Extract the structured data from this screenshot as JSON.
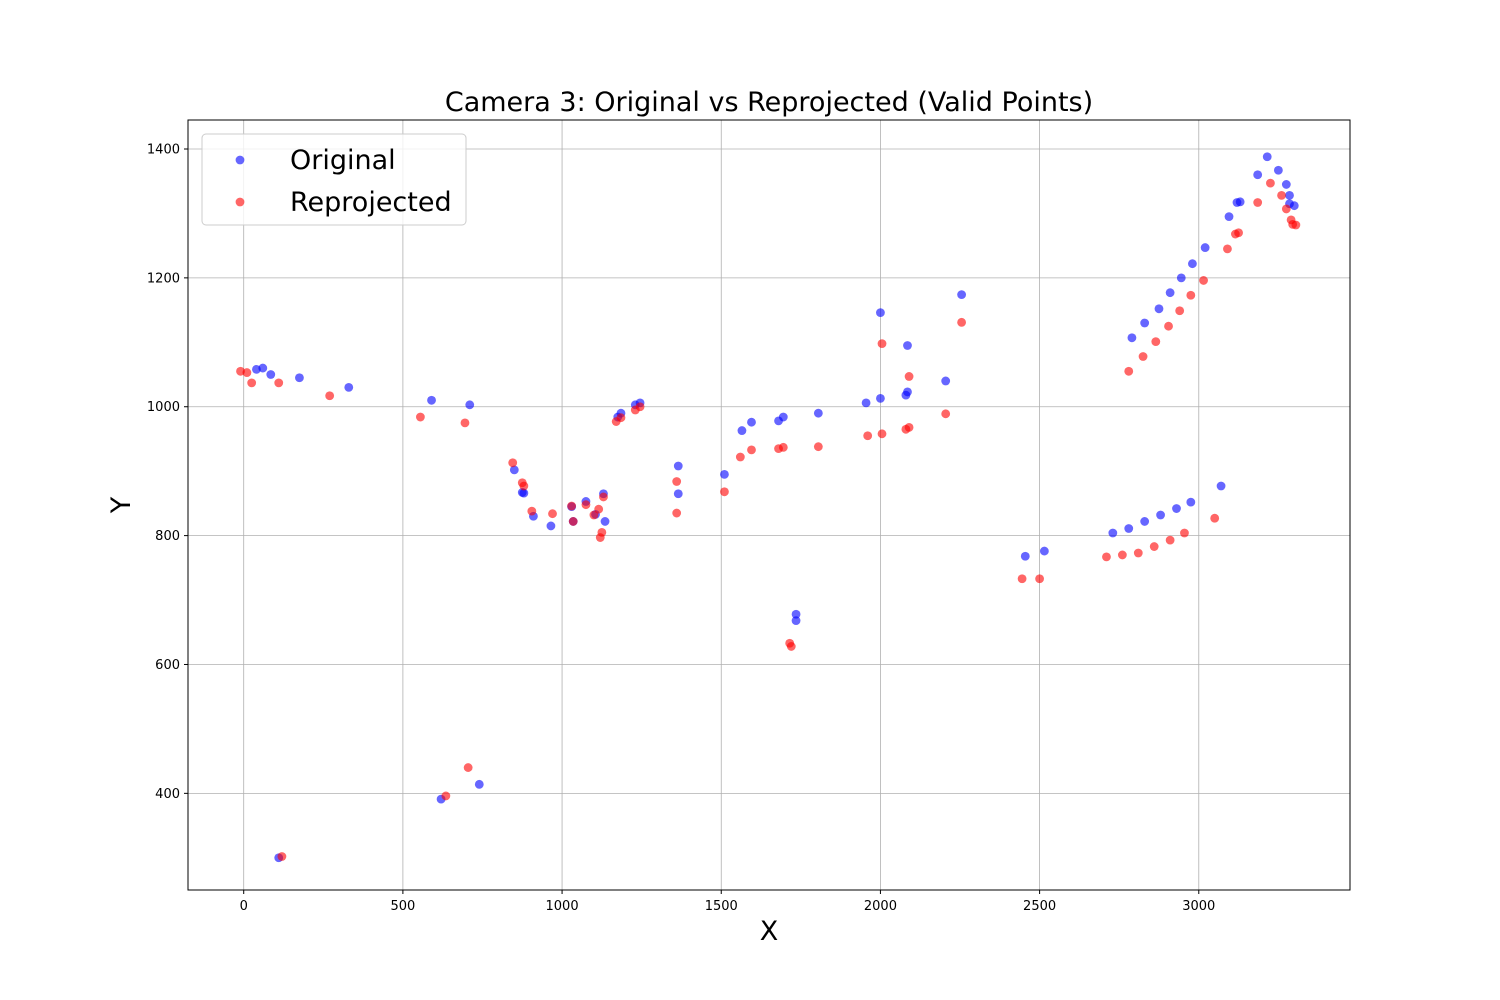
{
  "chart_data": {
    "type": "scatter",
    "title": "Camera 3: Original vs Reprojected (Valid Points)",
    "xlabel": "X",
    "ylabel": "Y",
    "xlim": [
      -175,
      3475
    ],
    "ylim": [
      250,
      1445
    ],
    "xticks": [
      0,
      500,
      1000,
      1500,
      2000,
      2500,
      3000
    ],
    "yticks": [
      400,
      600,
      800,
      1000,
      1200,
      1400
    ],
    "grid": true,
    "legend_position": "upper-left",
    "series": [
      {
        "name": "Original",
        "color": "#0000ff",
        "alpha": 0.6,
        "points": [
          [
            40,
            1058
          ],
          [
            60,
            1060
          ],
          [
            85,
            1050
          ],
          [
            175,
            1045
          ],
          [
            330,
            1030
          ],
          [
            590,
            1010
          ],
          [
            710,
            1003
          ],
          [
            850,
            902
          ],
          [
            875,
            867
          ],
          [
            880,
            866
          ],
          [
            910,
            830
          ],
          [
            965,
            815
          ],
          [
            1030,
            845
          ],
          [
            1035,
            822
          ],
          [
            1075,
            853
          ],
          [
            1105,
            833
          ],
          [
            1130,
            865
          ],
          [
            1135,
            822
          ],
          [
            1175,
            984
          ],
          [
            1185,
            990
          ],
          [
            1230,
            1003
          ],
          [
            1245,
            1006
          ],
          [
            1365,
            908
          ],
          [
            1365,
            865
          ],
          [
            1510,
            895
          ],
          [
            1565,
            963
          ],
          [
            1595,
            976
          ],
          [
            1680,
            978
          ],
          [
            1695,
            984
          ],
          [
            1805,
            990
          ],
          [
            1735,
            678
          ],
          [
            1735,
            668
          ],
          [
            1955,
            1006
          ],
          [
            2000,
            1013
          ],
          [
            2000,
            1146
          ],
          [
            2080,
            1018
          ],
          [
            2085,
            1023
          ],
          [
            2085,
            1095
          ],
          [
            2205,
            1040
          ],
          [
            2255,
            1174
          ],
          [
            2455,
            768
          ],
          [
            2515,
            776
          ],
          [
            2730,
            804
          ],
          [
            2780,
            811
          ],
          [
            2830,
            822
          ],
          [
            2880,
            832
          ],
          [
            2930,
            842
          ],
          [
            2975,
            852
          ],
          [
            3070,
            877
          ],
          [
            2790,
            1107
          ],
          [
            2830,
            1130
          ],
          [
            2875,
            1152
          ],
          [
            2910,
            1177
          ],
          [
            2945,
            1200
          ],
          [
            2980,
            1222
          ],
          [
            3020,
            1247
          ],
          [
            3095,
            1295
          ],
          [
            3120,
            1317
          ],
          [
            3130,
            1318
          ],
          [
            3185,
            1360
          ],
          [
            3215,
            1388
          ],
          [
            3250,
            1367
          ],
          [
            3275,
            1345
          ],
          [
            3285,
            1328
          ],
          [
            3285,
            1315
          ],
          [
            3300,
            1312
          ],
          [
            110,
            300
          ],
          [
            620,
            391
          ],
          [
            740,
            414
          ]
        ]
      },
      {
        "name": "Reprojected",
        "color": "#ff0000",
        "alpha": 0.6,
        "points": [
          [
            -10,
            1055
          ],
          [
            10,
            1053
          ],
          [
            25,
            1037
          ],
          [
            110,
            1037
          ],
          [
            270,
            1017
          ],
          [
            555,
            984
          ],
          [
            695,
            975
          ],
          [
            845,
            913
          ],
          [
            875,
            882
          ],
          [
            880,
            877
          ],
          [
            905,
            838
          ],
          [
            970,
            834
          ],
          [
            1030,
            846
          ],
          [
            1035,
            822
          ],
          [
            1075,
            848
          ],
          [
            1100,
            832
          ],
          [
            1115,
            841
          ],
          [
            1120,
            797
          ],
          [
            1125,
            805
          ],
          [
            1130,
            860
          ],
          [
            1170,
            977
          ],
          [
            1185,
            983
          ],
          [
            1230,
            995
          ],
          [
            1245,
            1000
          ],
          [
            1360,
            884
          ],
          [
            1360,
            835
          ],
          [
            1510,
            868
          ],
          [
            1560,
            922
          ],
          [
            1595,
            933
          ],
          [
            1680,
            935
          ],
          [
            1695,
            937
          ],
          [
            1805,
            938
          ],
          [
            1715,
            633
          ],
          [
            1720,
            628
          ],
          [
            1960,
            955
          ],
          [
            2005,
            958
          ],
          [
            2005,
            1098
          ],
          [
            2080,
            965
          ],
          [
            2090,
            968
          ],
          [
            2090,
            1047
          ],
          [
            2205,
            989
          ],
          [
            2255,
            1131
          ],
          [
            2445,
            733
          ],
          [
            2500,
            733
          ],
          [
            2710,
            767
          ],
          [
            2760,
            770
          ],
          [
            2810,
            773
          ],
          [
            2860,
            783
          ],
          [
            2910,
            793
          ],
          [
            2955,
            804
          ],
          [
            3050,
            827
          ],
          [
            2780,
            1055
          ],
          [
            2825,
            1078
          ],
          [
            2865,
            1101
          ],
          [
            2905,
            1125
          ],
          [
            2940,
            1149
          ],
          [
            2975,
            1173
          ],
          [
            3015,
            1196
          ],
          [
            3090,
            1245
          ],
          [
            3115,
            1268
          ],
          [
            3125,
            1270
          ],
          [
            3185,
            1317
          ],
          [
            3225,
            1347
          ],
          [
            3260,
            1328
          ],
          [
            3275,
            1307
          ],
          [
            3290,
            1290
          ],
          [
            3295,
            1283
          ],
          [
            3305,
            1282
          ],
          [
            120,
            302
          ],
          [
            635,
            396
          ],
          [
            705,
            440
          ]
        ]
      }
    ]
  }
}
